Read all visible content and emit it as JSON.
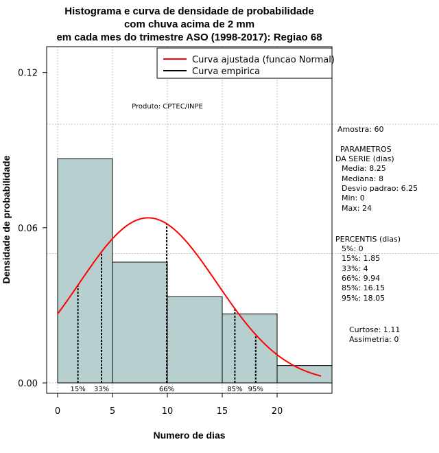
{
  "chart_data": {
    "type": "histogram",
    "title_lines": [
      "Histograma e curva de densidade de probabilidade",
      "com chuva acima de 2 mm",
      "em cada mes do trimestre ASO (1998-2017): Regiao 68"
    ],
    "xlabel": "Numero de dias",
    "ylabel": "Densidade de probabilidade",
    "xlim": [
      -1,
      25
    ],
    "ylim": [
      -0.004,
      0.13
    ],
    "x_ticks": [
      0,
      5,
      10,
      15,
      20
    ],
    "y_ticks": [
      0.0,
      0.06,
      0.12
    ],
    "y_tick_labels": [
      "0.00",
      "0.06",
      "0.12"
    ],
    "grid": {
      "vertical": [
        0,
        5,
        10,
        15,
        20
      ],
      "horizontal": [
        0.0,
        0.05,
        0.1
      ]
    },
    "bins": [
      {
        "x0": 0,
        "x1": 5,
        "density": 0.0867
      },
      {
        "x0": 5,
        "x1": 10,
        "density": 0.0467
      },
      {
        "x0": 10,
        "x1": 15,
        "density": 0.0333
      },
      {
        "x0": 15,
        "x1": 20,
        "density": 0.0267
      },
      {
        "x0": 20,
        "x1": 25,
        "density": 0.0067
      }
    ],
    "normal_curve": {
      "mean": 8.25,
      "sd": 6.25,
      "x_min": 0,
      "x_max": 24,
      "color": "#ff0000"
    },
    "percentile_markers": [
      {
        "label": "15%",
        "x": 1.85
      },
      {
        "label": "33%",
        "x": 4
      },
      {
        "label": "66%",
        "x": 9.94
      },
      {
        "label": "85%",
        "x": 16.15
      },
      {
        "label": "95%",
        "x": 18.05
      }
    ],
    "bar_color": "#b7cfcf",
    "legend": {
      "entries": [
        {
          "label": "Curva ajustada (funcao Normal)",
          "color": "#ff0000"
        },
        {
          "label": "Curva empirica",
          "color": "#000000"
        }
      ],
      "position": "top-right"
    },
    "annotation_product": "Produto: CPTEC/INPE"
  },
  "side_panel": {
    "sample": "Amostra: 60",
    "params_header_1": "PARAMETROS",
    "params_header_2": "DA SERIE (dias)",
    "params": [
      "Media: 8.25",
      "Mediana: 8",
      "Desvio padrao: 6.25",
      "Min: 0",
      "Max: 24"
    ],
    "percentis_header": "PERCENTIS (dias)",
    "percentis": [
      "5%: 0",
      "15%: 1.85",
      "33%: 4",
      "66%: 9.94",
      "85%: 16.15",
      "95%: 18.05"
    ],
    "curtose": "Curtose: 1.11",
    "assimetria": "Assimetria: 0"
  }
}
